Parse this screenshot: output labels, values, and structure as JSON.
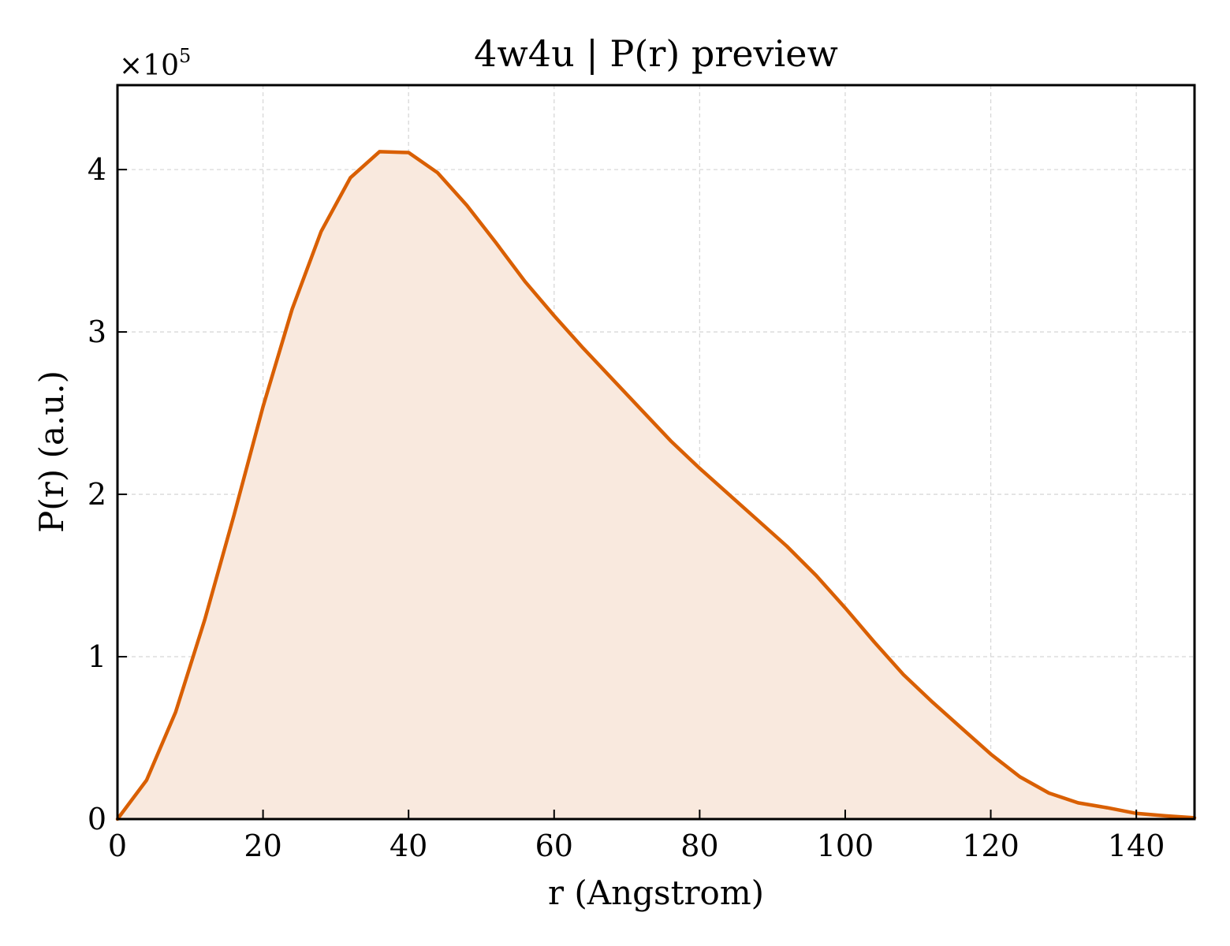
{
  "chart_data": {
    "type": "area",
    "title": "4w4u | P(r) preview",
    "xlabel": "r (Angstrom)",
    "ylabel": "P(r) (a.u.)",
    "y_offset_text": "×10",
    "y_offset_exponent": "5",
    "xlim": [
      0,
      148
    ],
    "ylim": [
      0,
      452000
    ],
    "x_ticks": [
      0,
      20,
      40,
      60,
      80,
      100,
      120,
      140
    ],
    "x_tick_labels": [
      "0",
      "20",
      "40",
      "60",
      "80",
      "100",
      "120",
      "140"
    ],
    "y_ticks": [
      0,
      100000,
      200000,
      300000,
      400000
    ],
    "y_tick_labels": [
      "0",
      "1",
      "2",
      "3",
      "4"
    ],
    "grid": true,
    "line_color": "#d95f02",
    "fill_color": "#f9e9de",
    "grid_color": "#d8d8d8",
    "series": [
      {
        "x": [
          0,
          4,
          8,
          12,
          16,
          20,
          24,
          28,
          32,
          36,
          40,
          44,
          48,
          52,
          56,
          60,
          64,
          68,
          72,
          76,
          80,
          84,
          88,
          92,
          96,
          100,
          104,
          108,
          112,
          116,
          120,
          124,
          128,
          132,
          136,
          140,
          144,
          148
        ],
        "values": [
          0,
          24000,
          66000,
          123000,
          187000,
          254000,
          314000,
          362000,
          395000,
          411000,
          410500,
          398000,
          378000,
          355000,
          331000,
          310000,
          290000,
          271000,
          252000,
          233000,
          216000,
          200000,
          184000,
          168000,
          150000,
          130000,
          109000,
          89000,
          72000,
          56000,
          40000,
          26000,
          16000,
          10000,
          7000,
          3500,
          2000,
          800
        ]
      }
    ]
  }
}
